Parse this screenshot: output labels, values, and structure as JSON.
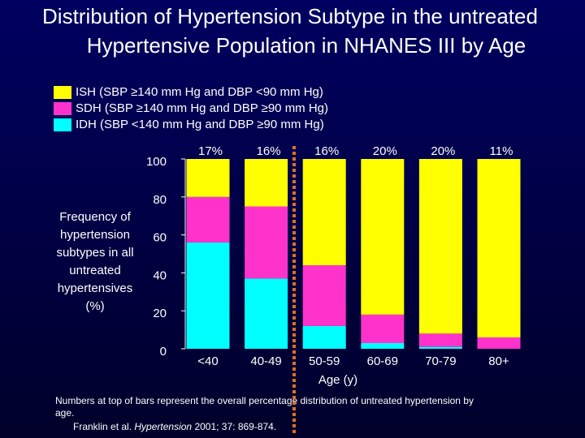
{
  "chart_data": {
    "type": "stacked_bar",
    "title": [
      "Distribution of Hypertension Subtype in the untreated",
      "Hypertensive Population in NHANES III by Age"
    ],
    "ylabel": [
      "Frequency of",
      "hypertension",
      "subtypes in all",
      "untreated",
      "hypertensives",
      "(%)"
    ],
    "xlabel": "Age (y)",
    "categories": [
      "<40",
      "40-49",
      "50-59",
      "60-69",
      "70-79",
      "80+"
    ],
    "series": [
      {
        "name": "IDH (SBP <140 mm Hg and DBP ≥90 mm Hg)",
        "color": "#00ffff",
        "values": [
          56,
          37,
          12,
          3,
          1,
          0
        ]
      },
      {
        "name": "SDH (SBP ≥140 mm Hg and DBP ≥90 mm Hg)",
        "color": "#ff33cc",
        "values": [
          24,
          38,
          32,
          15,
          7,
          6
        ]
      },
      {
        "name": "ISH (SBP ≥140 mm Hg and DBP <90 mm Hg)",
        "color": "#ffff00",
        "values": [
          20,
          25,
          56,
          82,
          92,
          94
        ]
      }
    ],
    "overall_distribution": {
      "values": [
        17,
        16,
        16,
        20,
        20,
        11
      ],
      "value_labels": [
        "17%",
        "16%",
        "16%",
        "20%",
        "20%",
        "11%"
      ]
    },
    "ylim": [
      0,
      100
    ],
    "yticks": [
      0,
      20,
      40,
      60,
      80,
      100
    ],
    "note": [
      "Numbers at top of bars represent the overall percentage distribution of untreated hypertension by",
      "age."
    ],
    "source": {
      "authors": "Franklin et al.",
      "journal": "Hypertension",
      "details": "2001; 37: 869-874."
    }
  }
}
